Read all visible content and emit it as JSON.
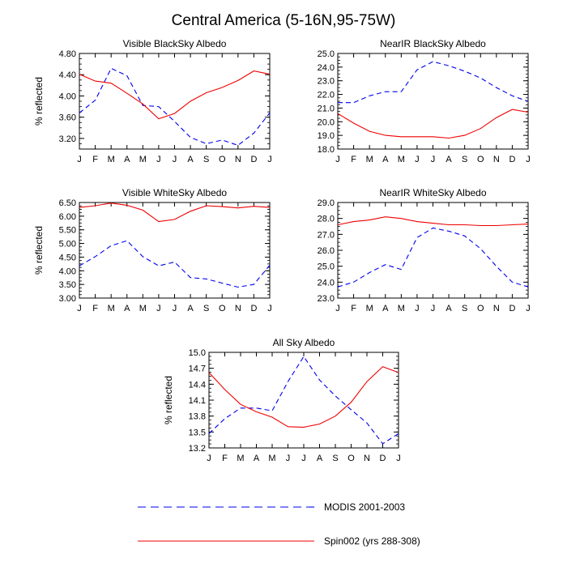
{
  "figure": {
    "title": "Central America (5-16N,95-75W)"
  },
  "colors": {
    "modis": "#0000ee",
    "spin": "#ee0000",
    "axis": "#000000"
  },
  "legend": [
    {
      "name": "MODIS 2001-2003",
      "style": "dashed",
      "color": "#0000ee"
    },
    {
      "name": "Spin002 (yrs 288-308)",
      "style": "solid",
      "color": "#ee0000"
    }
  ],
  "chart_data": [
    {
      "type": "line",
      "title": "Visible BlackSky Albedo",
      "ylabel": "% reflected",
      "xlabel": "",
      "categories": [
        "J",
        "F",
        "M",
        "A",
        "M",
        "J",
        "J",
        "A",
        "S",
        "O",
        "N",
        "D",
        "J"
      ],
      "ylim": [
        3.0,
        4.8
      ],
      "yticks": [
        "3.20",
        "3.60",
        "4.00",
        "4.40",
        "4.80"
      ],
      "series": [
        {
          "name": "MODIS 2001-2003",
          "style": "dashed",
          "values": [
            3.68,
            3.92,
            4.52,
            4.38,
            3.82,
            3.8,
            3.52,
            3.22,
            3.1,
            3.17,
            3.07,
            3.3,
            3.68
          ]
        },
        {
          "name": "Spin002 (yrs 288-308)",
          "style": "solid",
          "values": [
            4.41,
            4.28,
            4.24,
            4.05,
            3.85,
            3.57,
            3.67,
            3.9,
            4.06,
            4.16,
            4.29,
            4.47,
            4.41
          ]
        }
      ]
    },
    {
      "type": "line",
      "title": "NearIR BlackSky Albedo",
      "ylabel": "",
      "xlabel": "",
      "categories": [
        "J",
        "F",
        "M",
        "A",
        "M",
        "J",
        "J",
        "A",
        "S",
        "O",
        "N",
        "D",
        "J"
      ],
      "ylim": [
        18.0,
        25.0
      ],
      "yticks": [
        "18.0",
        "19.0",
        "20.0",
        "21.0",
        "22.0",
        "23.0",
        "24.0",
        "25.0"
      ],
      "series": [
        {
          "name": "MODIS 2001-2003",
          "style": "dashed",
          "values": [
            21.4,
            21.4,
            21.9,
            22.2,
            22.2,
            23.8,
            24.4,
            24.1,
            23.7,
            23.2,
            22.5,
            21.9,
            21.5
          ]
        },
        {
          "name": "Spin002 (yrs 288-308)",
          "style": "solid",
          "values": [
            20.6,
            19.9,
            19.3,
            19.0,
            18.9,
            18.9,
            18.9,
            18.8,
            19.0,
            19.5,
            20.3,
            20.9,
            20.7
          ]
        }
      ]
    },
    {
      "type": "line",
      "title": "Visible WhiteSky Albedo",
      "ylabel": "% reflected",
      "xlabel": "",
      "categories": [
        "J",
        "F",
        "M",
        "A",
        "M",
        "J",
        "J",
        "A",
        "S",
        "O",
        "N",
        "D",
        "J"
      ],
      "ylim": [
        3.0,
        6.5
      ],
      "yticks": [
        "3.00",
        "3.50",
        "4.00",
        "4.50",
        "5.00",
        "5.50",
        "6.00",
        "6.50"
      ],
      "series": [
        {
          "name": "MODIS 2001-2003",
          "style": "dashed",
          "values": [
            4.18,
            4.52,
            4.92,
            5.1,
            4.52,
            4.18,
            4.32,
            3.75,
            3.7,
            3.55,
            3.4,
            3.5,
            4.2
          ]
        },
        {
          "name": "Spin002 (yrs 288-308)",
          "style": "solid",
          "values": [
            6.32,
            6.38,
            6.48,
            6.4,
            6.22,
            5.8,
            5.88,
            6.18,
            6.38,
            6.35,
            6.3,
            6.36,
            6.32
          ]
        }
      ]
    },
    {
      "type": "line",
      "title": "NearIR WhiteSky Albedo",
      "ylabel": "",
      "xlabel": "",
      "categories": [
        "J",
        "F",
        "M",
        "A",
        "M",
        "J",
        "J",
        "A",
        "S",
        "O",
        "N",
        "D",
        "J"
      ],
      "ylim": [
        23.0,
        29.0
      ],
      "yticks": [
        "23.0",
        "24.0",
        "25.0",
        "26.0",
        "27.0",
        "28.0",
        "29.0"
      ],
      "series": [
        {
          "name": "MODIS 2001-2003",
          "style": "dashed",
          "values": [
            23.7,
            24.0,
            24.6,
            25.1,
            24.8,
            26.8,
            27.4,
            27.2,
            26.9,
            26.1,
            25.0,
            24.0,
            23.7
          ]
        },
        {
          "name": "Spin002 (yrs 288-308)",
          "style": "solid",
          "values": [
            27.6,
            27.8,
            27.9,
            28.1,
            28.0,
            27.8,
            27.7,
            27.6,
            27.6,
            27.55,
            27.55,
            27.6,
            27.65
          ]
        }
      ]
    },
    {
      "type": "line",
      "title": "All Sky Albedo",
      "ylabel": "% reflected",
      "xlabel": "",
      "categories": [
        "J",
        "F",
        "M",
        "A",
        "M",
        "J",
        "J",
        "A",
        "S",
        "O",
        "N",
        "D",
        "J"
      ],
      "ylim": [
        13.2,
        15.0
      ],
      "yticks": [
        "13.2",
        "13.5",
        "13.8",
        "14.1",
        "14.4",
        "14.7",
        "15.0"
      ],
      "series": [
        {
          "name": "MODIS 2001-2003",
          "style": "dashed",
          "values": [
            13.47,
            13.75,
            13.95,
            13.95,
            13.9,
            14.45,
            14.92,
            14.48,
            14.18,
            13.92,
            13.67,
            13.28,
            13.47
          ]
        },
        {
          "name": "Spin002 (yrs 288-308)",
          "style": "solid",
          "values": [
            14.62,
            14.3,
            14.02,
            13.88,
            13.78,
            13.6,
            13.59,
            13.65,
            13.8,
            14.06,
            14.45,
            14.73,
            14.62
          ]
        }
      ]
    }
  ]
}
